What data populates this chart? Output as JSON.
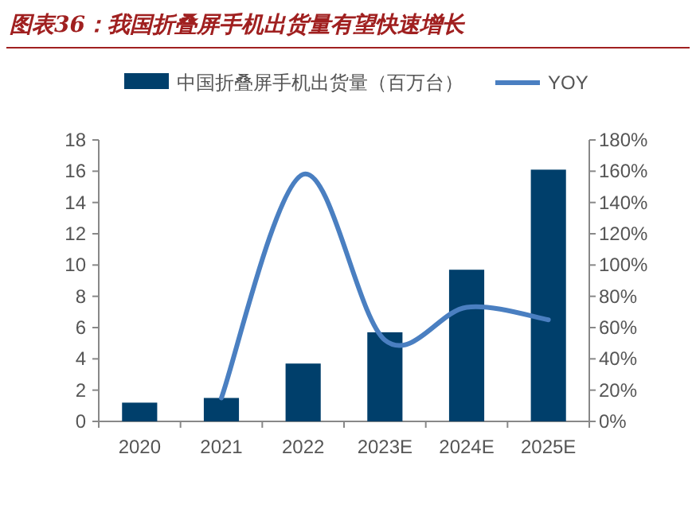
{
  "chart_data": {
    "type": "bar",
    "title": "图表36：我国折叠屏手机出货量有望快速增长",
    "categories": [
      "2020",
      "2021",
      "2022",
      "2023E",
      "2024E",
      "2025E"
    ],
    "series": [
      {
        "name": "中国折叠屏手机出货量（百万台）",
        "color": "#003f6b",
        "values": [
          1.2,
          1.5,
          3.7,
          5.7,
          9.7,
          16.1
        ]
      },
      {
        "name": "YOY",
        "type": "line",
        "axis": "y2",
        "color": "#4a7fc1",
        "values": [
          null,
          15,
          158,
          52,
          73,
          65
        ]
      }
    ],
    "ylim": [
      0,
      18
    ],
    "yticks": [
      0,
      2,
      4,
      6,
      8,
      10,
      12,
      14,
      16,
      18
    ],
    "y2lim": [
      0,
      180
    ],
    "y2ticks": [
      {
        "value": 0,
        "label": "0%"
      },
      {
        "value": 20,
        "label": "20%"
      },
      {
        "value": 40,
        "label": "40%"
      },
      {
        "value": 60,
        "label": "60%"
      },
      {
        "value": 80,
        "label": "80%"
      },
      {
        "value": 100,
        "label": "100%"
      },
      {
        "value": 120,
        "label": "120%"
      },
      {
        "value": 140,
        "label": "140%"
      },
      {
        "value": 160,
        "label": "160%"
      },
      {
        "value": 180,
        "label": "180%"
      }
    ],
    "legend": "top",
    "grid": false
  }
}
